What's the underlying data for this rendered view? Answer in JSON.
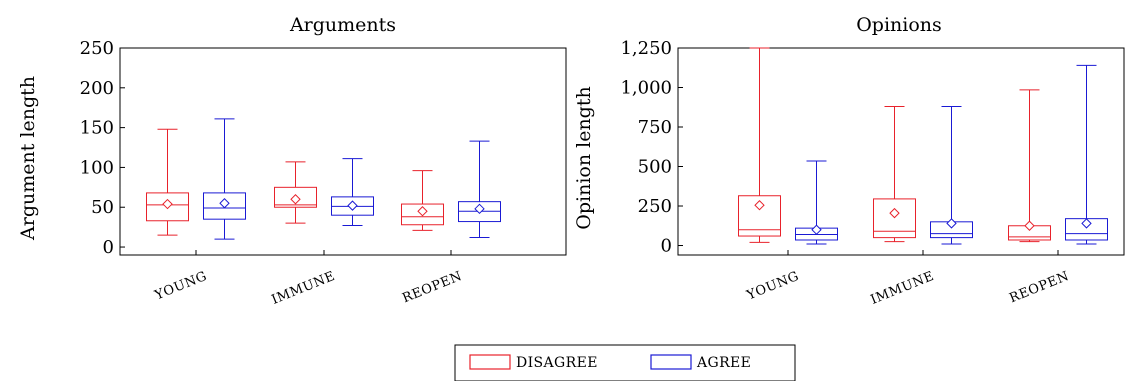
{
  "chart_data": [
    {
      "type": "box",
      "title": "Arguments",
      "ylabel": "Argument length",
      "xlabel": "",
      "ylim": [
        -10,
        250
      ],
      "yticks": [
        0,
        50,
        100,
        150,
        200,
        250
      ],
      "ytick_labels": [
        "0",
        "50",
        "100",
        "150",
        "200",
        "250"
      ],
      "categories": [
        "YOUNG",
        "IMMUNE",
        "REOPEN"
      ],
      "series": [
        {
          "name": "DISAGREE",
          "color": "#e8222b",
          "boxes": [
            {
              "min": 15,
              "q1": 33,
              "median": 53,
              "q3": 68,
              "max": 148,
              "mean": 54
            },
            {
              "min": 30,
              "q1": 50,
              "median": 53,
              "q3": 75,
              "max": 107,
              "mean": 60
            },
            {
              "min": 21,
              "q1": 28,
              "median": 38,
              "q3": 54,
              "max": 96,
              "mean": 45
            }
          ]
        },
        {
          "name": "AGREE",
          "color": "#1a1ad4",
          "boxes": [
            {
              "min": 10,
              "q1": 35,
              "median": 49,
              "q3": 68,
              "max": 161,
              "mean": 55
            },
            {
              "min": 27,
              "q1": 40,
              "median": 51,
              "q3": 63,
              "max": 111,
              "mean": 52
            },
            {
              "min": 12,
              "q1": 32,
              "median": 45,
              "q3": 57,
              "max": 133,
              "mean": 48
            }
          ]
        }
      ]
    },
    {
      "type": "box",
      "title": "Opinions",
      "ylabel": "Opinion length",
      "xlabel": "",
      "ylim": [
        -60,
        1250
      ],
      "yticks": [
        0,
        250,
        500,
        750,
        1000,
        1250
      ],
      "ytick_labels": [
        "0",
        "250",
        "500",
        "750",
        "1,000",
        "1,250"
      ],
      "categories": [
        "YOUNG",
        "IMMUNE",
        "REOPEN"
      ],
      "series": [
        {
          "name": "DISAGREE",
          "color": "#e8222b",
          "boxes": [
            {
              "min": 20,
              "q1": 60,
              "median": 100,
              "q3": 315,
              "max": 1250,
              "mean": 255
            },
            {
              "min": 25,
              "q1": 50,
              "median": 90,
              "q3": 295,
              "max": 880,
              "mean": 205
            },
            {
              "min": 25,
              "q1": 35,
              "median": 55,
              "q3": 125,
              "max": 985,
              "mean": 125
            }
          ]
        },
        {
          "name": "AGREE",
          "color": "#1a1ad4",
          "boxes": [
            {
              "min": 10,
              "q1": 35,
              "median": 70,
              "q3": 110,
              "max": 535,
              "mean": 100
            },
            {
              "min": 10,
              "q1": 50,
              "median": 75,
              "q3": 150,
              "max": 880,
              "mean": 140
            },
            {
              "min": 10,
              "q1": 35,
              "median": 75,
              "q3": 170,
              "max": 1140,
              "mean": 140
            }
          ]
        }
      ]
    }
  ],
  "legend": {
    "entries": [
      {
        "label": "DISAGREE",
        "color": "#e8222b"
      },
      {
        "label": "AGREE",
        "color": "#1a1ad4"
      }
    ],
    "placement": "bottom-center"
  }
}
